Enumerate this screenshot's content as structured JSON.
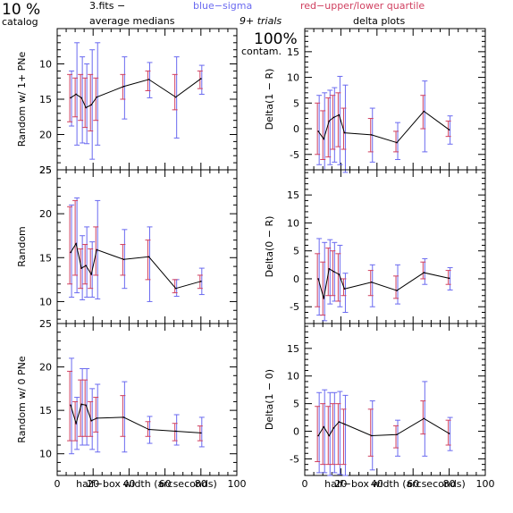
{
  "header": {
    "pct": "10 %",
    "catalog": "catalog",
    "fits": "3.fits  −",
    "avg_medians": "average medians",
    "blue": "blue−sigma",
    "red": "red−upper/lower quartile",
    "trials": "9+ trials",
    "delta_plots": "delta plots",
    "contam_pct": "100%",
    "contam": "contam."
  },
  "colors": {
    "blue": "#6a6af0",
    "red": "#d04060",
    "line": "#000000"
  },
  "x_label": "half−box width (arcseconds)",
  "chart_data": [
    {
      "type": "line",
      "ylabel": "Random w/ 1+ PNe",
      "xlim": [
        0,
        100
      ],
      "ylim": [
        25,
        5
      ],
      "xticks": [
        0,
        20,
        40,
        60,
        80,
        100
      ],
      "yticks": [
        10,
        15,
        20,
        25
      ],
      "x": [
        7.5,
        10.5,
        13.5,
        16,
        19,
        22,
        37,
        51,
        66,
        80
      ],
      "y": [
        14.8,
        14.3,
        14.8,
        16.2,
        15.8,
        14.7,
        13.2,
        12.2,
        14.7,
        12.1
      ],
      "blue_err": [
        [
          11,
          18.8
        ],
        [
          7,
          21.5
        ],
        [
          9,
          21.2
        ],
        [
          10,
          21.3
        ],
        [
          8,
          23.5
        ],
        [
          7,
          21.5
        ],
        [
          9,
          17.8
        ],
        [
          9.8,
          14.8
        ],
        [
          9,
          20.5
        ],
        [
          10.2,
          14.3
        ]
      ],
      "red_err": [
        [
          11.5,
          18.2
        ],
        [
          12,
          17.5
        ],
        [
          11.5,
          18
        ],
        [
          12,
          19
        ],
        [
          11.5,
          19.5
        ],
        [
          12,
          18
        ],
        [
          11.5,
          15
        ],
        [
          11,
          13.8
        ],
        [
          11.5,
          16.5
        ],
        [
          11,
          13.5
        ]
      ]
    },
    {
      "type": "line",
      "ylabel": "Delta(1 − R)",
      "xlim": [
        0,
        100
      ],
      "ylim": [
        -8,
        19.5
      ],
      "xticks": [
        0,
        20,
        40,
        60,
        80,
        100
      ],
      "yticks": [
        -5,
        0,
        5,
        10,
        15
      ],
      "x": [
        7.5,
        10.5,
        13.5,
        16,
        19,
        22,
        37,
        51,
        66,
        80
      ],
      "y": [
        -0.5,
        -2,
        1.5,
        2.2,
        2.7,
        -0.8,
        -1.2,
        -2.7,
        3.4,
        -0.2
      ],
      "blue_err": [
        [
          -7,
          6.5
        ],
        [
          -8,
          7
        ],
        [
          -7,
          7.5
        ],
        [
          -6.5,
          8
        ],
        [
          -7,
          10.2
        ],
        [
          -8.5,
          8.5
        ],
        [
          -6.5,
          4
        ],
        [
          -6,
          1.2
        ],
        [
          -4.5,
          9.3
        ],
        [
          -3,
          2.5
        ]
      ],
      "red_err": [
        [
          -5,
          5
        ],
        [
          -6,
          3.5
        ],
        [
          -5.5,
          6
        ],
        [
          -4,
          6.5
        ],
        [
          -3.5,
          7
        ],
        [
          -4,
          4
        ],
        [
          -4.5,
          2
        ],
        [
          -4.5,
          -0.5
        ],
        [
          0,
          6.5
        ],
        [
          -1.5,
          1.5
        ]
      ]
    },
    {
      "type": "line",
      "ylabel": "Random",
      "xlim": [
        0,
        100
      ],
      "ylim": [
        7.5,
        25
      ],
      "xticks": [
        0,
        20,
        40,
        60,
        80,
        100
      ],
      "yticks": [
        10,
        15,
        20,
        25
      ],
      "x": [
        7.5,
        10.5,
        13.5,
        16,
        19,
        22,
        37,
        51,
        66,
        80
      ],
      "y": [
        15.6,
        16.6,
        13.8,
        14.1,
        13.1,
        15.9,
        14.8,
        15.1,
        11.5,
        12.3
      ],
      "blue_err": [
        [
          10.5,
          21
        ],
        [
          11,
          21.8
        ],
        [
          10.2,
          17.5
        ],
        [
          10.5,
          18.5
        ],
        [
          10.5,
          16.8
        ],
        [
          10.3,
          21.5
        ],
        [
          11.5,
          18.2
        ],
        [
          10,
          18.5
        ],
        [
          10.6,
          12.5
        ],
        [
          10.8,
          13.8
        ]
      ],
      "red_err": [
        [
          12,
          20.8
        ],
        [
          13,
          21.5
        ],
        [
          11.5,
          16
        ],
        [
          12,
          16.5
        ],
        [
          11.5,
          16
        ],
        [
          13,
          18.5
        ],
        [
          13,
          16.5
        ],
        [
          12.5,
          17
        ],
        [
          11,
          12.5
        ],
        [
          11.5,
          13
        ]
      ]
    },
    {
      "type": "line",
      "ylabel": "Delta(0 − R)",
      "xlim": [
        0,
        100
      ],
      "ylim": [
        -8,
        19.5
      ],
      "xticks": [
        0,
        20,
        40,
        60,
        80,
        100
      ],
      "yticks": [
        -5,
        0,
        5,
        10,
        15
      ],
      "x": [
        7.5,
        10.5,
        13.5,
        16,
        19,
        22,
        37,
        51,
        66,
        80
      ],
      "y": [
        0,
        -3.5,
        1.8,
        1.3,
        0.8,
        -1.8,
        -0.6,
        -2.1,
        1.1,
        0.1
      ],
      "blue_err": [
        [
          -6.5,
          7.2
        ],
        [
          -7.5,
          6.5
        ],
        [
          -4.5,
          7
        ],
        [
          -4,
          6.5
        ],
        [
          -5,
          6
        ],
        [
          -6,
          1
        ],
        [
          -5,
          2.5
        ],
        [
          -4.5,
          2.5
        ],
        [
          -1,
          3.6
        ],
        [
          -2,
          2
        ]
      ],
      "red_err": [
        [
          -5,
          4.5
        ],
        [
          -6.5,
          3
        ],
        [
          -3,
          5.5
        ],
        [
          -3,
          5
        ],
        [
          -4,
          4.5
        ],
        [
          -3,
          0
        ],
        [
          -3,
          1.5
        ],
        [
          -3.5,
          0.5
        ],
        [
          0,
          3
        ],
        [
          -1,
          1.5
        ]
      ]
    },
    {
      "type": "line",
      "ylabel": "Random w/ 0 PNe",
      "xlim": [
        0,
        100
      ],
      "ylim": [
        7.5,
        25
      ],
      "xticks": [
        0,
        20,
        40,
        60,
        80,
        100
      ],
      "yticks": [
        10,
        15,
        20,
        25
      ],
      "x": [
        7.5,
        10.5,
        13.5,
        16,
        19,
        22,
        37,
        51,
        66,
        80
      ],
      "y": [
        15.6,
        13.5,
        15.7,
        15.6,
        13.8,
        14.1,
        14.2,
        12.8,
        12.6,
        12.4
      ],
      "blue_err": [
        [
          10,
          21
        ],
        [
          10.5,
          16.5
        ],
        [
          11,
          19.8
        ],
        [
          11,
          19.8
        ],
        [
          10.5,
          17.5
        ],
        [
          10.2,
          18
        ],
        [
          10.2,
          18.3
        ],
        [
          11.2,
          14.3
        ],
        [
          11,
          14.5
        ],
        [
          10.8,
          14.2
        ]
      ],
      "red_err": [
        [
          11.5,
          19.5
        ],
        [
          11.5,
          16
        ],
        [
          12,
          18.5
        ],
        [
          12,
          18.5
        ],
        [
          12,
          16
        ],
        [
          12.5,
          16.5
        ],
        [
          12,
          16.7
        ],
        [
          12,
          13.7
        ],
        [
          11.5,
          13.5
        ],
        [
          11.5,
          13.2
        ]
      ]
    },
    {
      "type": "line",
      "ylabel": "Delta(1 − 0)",
      "xlim": [
        0,
        100
      ],
      "ylim": [
        -8,
        19.5
      ],
      "xticks": [
        0,
        20,
        40,
        60,
        80,
        100
      ],
      "yticks": [
        -5,
        0,
        5,
        10,
        15
      ],
      "x": [
        7.5,
        10.5,
        13.5,
        16,
        19,
        22,
        37,
        51,
        66,
        80
      ],
      "y": [
        -0.8,
        0.8,
        -0.8,
        0.6,
        1.7,
        1.3,
        -0.8,
        -0.6,
        2.3,
        -0.4
      ],
      "blue_err": [
        [
          -7.5,
          7
        ],
        [
          -7.5,
          7.5
        ],
        [
          -8,
          7
        ],
        [
          -7.5,
          7
        ],
        [
          -7.8,
          7.2
        ],
        [
          -8,
          6.5
        ],
        [
          -7,
          5.5
        ],
        [
          -4.5,
          2
        ],
        [
          -4.5,
          9
        ],
        [
          -3.5,
          2.5
        ]
      ],
      "red_err": [
        [
          -5.5,
          4.5
        ],
        [
          -6,
          5
        ],
        [
          -6,
          4.5
        ],
        [
          -6,
          5
        ],
        [
          -6,
          5
        ],
        [
          -6,
          4
        ],
        [
          -4.5,
          4
        ],
        [
          -3,
          1
        ],
        [
          -0.5,
          5.5
        ],
        [
          -2.5,
          2
        ]
      ]
    }
  ]
}
